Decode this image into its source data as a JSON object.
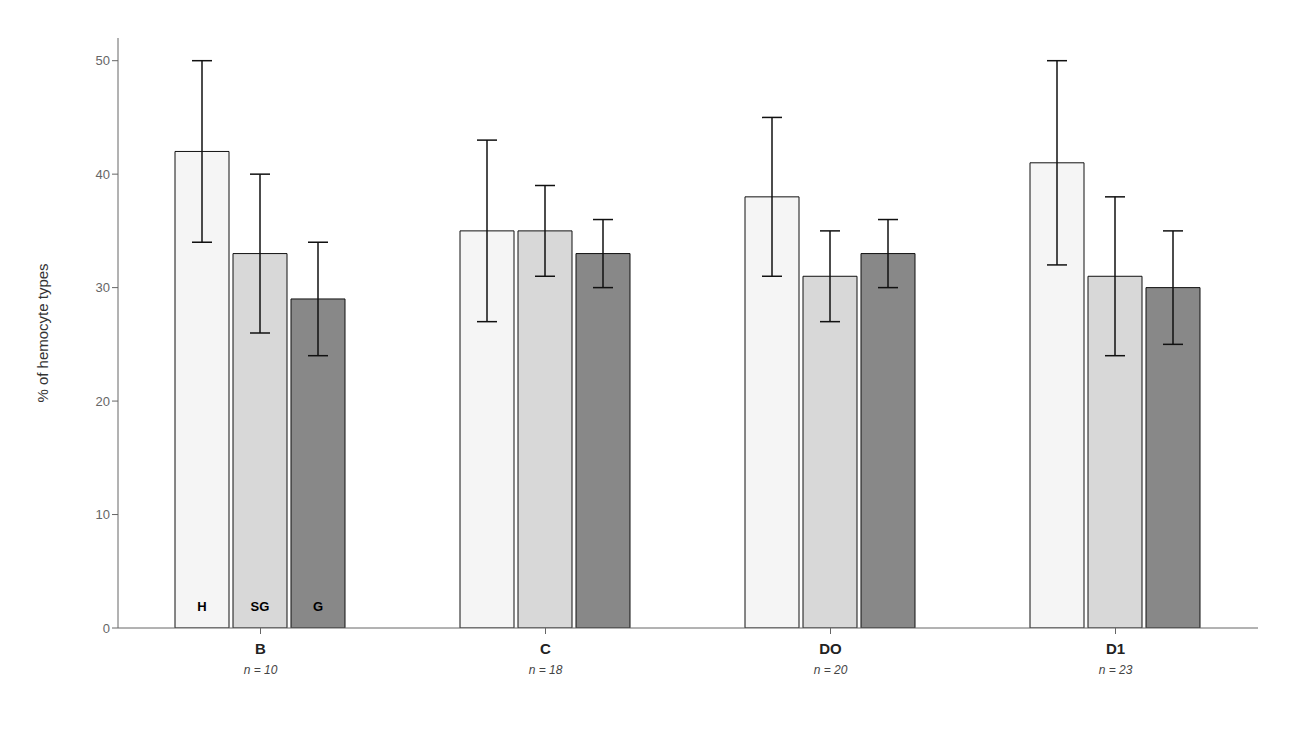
{
  "chart_data": {
    "type": "bar",
    "categories": [
      "B",
      "C",
      "DO",
      "D1"
    ],
    "annotations": [
      "n = 10",
      "n = 18",
      "n = 20",
      "n = 23"
    ],
    "series": [
      {
        "name": "H",
        "color": "#f5f5f5",
        "values": [
          42,
          35,
          38,
          41
        ],
        "errors": [
          8,
          8,
          7,
          9
        ]
      },
      {
        "name": "SG",
        "color": "#d8d8d8",
        "values": [
          33,
          35,
          31,
          31
        ],
        "errors": [
          7,
          4,
          4,
          7
        ]
      },
      {
        "name": "G",
        "color": "#888888",
        "values": [
          29,
          33,
          33,
          30
        ],
        "errors": [
          5,
          3,
          3,
          5
        ]
      }
    ],
    "ylabel": "% of hemocyte types",
    "ylim": [
      0,
      52
    ],
    "yticks": [
      0,
      10,
      20,
      30,
      40,
      50
    ],
    "grid": false
  }
}
